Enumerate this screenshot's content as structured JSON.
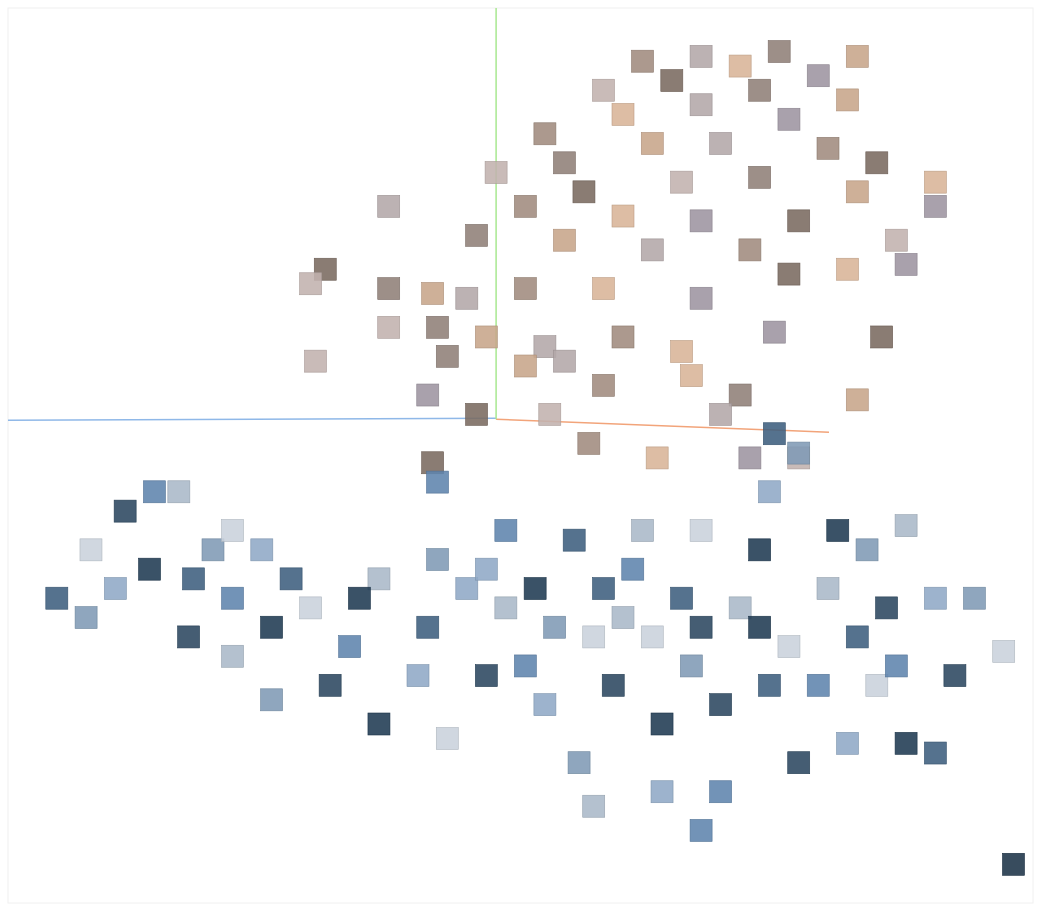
{
  "chart_data": {
    "type": "scatter",
    "marker": "square",
    "tick_labels": false,
    "grid": false,
    "xlim": [
      -10,
      11
    ],
    "ylim": [
      -10,
      8.5
    ],
    "series": [
      {
        "x": [
          5.8,
          7.4,
          4.2,
          3.0,
          5.0,
          6.6,
          3.6,
          2.2,
          5.4,
          7.2,
          4.2,
          1.0,
          2.6,
          6.0,
          7.8,
          0.0,
          1.4,
          3.2,
          4.6,
          6.8,
          9.0,
          9.0,
          1.8,
          3.8,
          5.4,
          7.4,
          -2.2,
          0.6,
          2.6,
          4.2,
          6.2,
          8.2,
          -0.4,
          1.4,
          3.2,
          5.2,
          7.2,
          8.4,
          -3.5,
          -3.8,
          -2.2,
          -1.3,
          -0.6,
          0.6,
          2.2,
          4.2,
          6.0,
          -2.2,
          -1.2,
          -0.2,
          1.0,
          2.6,
          3.8,
          5.7,
          7.9,
          -3.7,
          -1.0,
          0.6,
          1.4,
          2.2,
          4.0,
          -1.4,
          -0.4,
          1.1,
          5.0,
          7.4,
          4.6,
          1.9,
          3.3,
          5.2,
          -1.3,
          6.2
        ],
        "values": [
          7.6,
          7.5,
          7.5,
          7.4,
          7.3,
          7.1,
          7.0,
          6.8,
          6.8,
          6.6,
          6.5,
          5.9,
          6.3,
          6.2,
          5.3,
          5.1,
          5.3,
          5.7,
          5.7,
          5.6,
          4.9,
          4.4,
          4.7,
          4.9,
          5.0,
          4.7,
          4.4,
          4.4,
          4.2,
          4.1,
          4.1,
          3.7,
          3.8,
          3.7,
          3.5,
          3.5,
          3.1,
          3.2,
          3.1,
          2.8,
          2.7,
          2.6,
          2.5,
          2.7,
          2.7,
          2.5,
          3.0,
          1.9,
          1.9,
          1.7,
          1.5,
          1.7,
          1.4,
          1.8,
          1.7,
          1.2,
          1.3,
          1.1,
          1.2,
          0.7,
          0.9,
          0.5,
          0.1,
          0.1,
          0.5,
          0.4,
          0.1,
          -0.5,
          -0.8,
          -0.8,
          -0.9,
          -0.8
        ],
        "colors": [
          "#8f7f78",
          "#c7a58a",
          "#b3a7a8",
          "#a08b7e",
          "#d8b497",
          "#9d94a0",
          "#7a6a60",
          "#c2b2ae",
          "#8f7f78",
          "#c7a58a",
          "#b3a7a8",
          "#a08b7e",
          "#d8b497",
          "#9d94a0",
          "#7a6a60",
          "#c2b2ae",
          "#8f7f78",
          "#c7a58a",
          "#b3a7a8",
          "#a08b7e",
          "#d8b497",
          "#9d94a0",
          "#7a6a60",
          "#c2b2ae",
          "#8f7f78",
          "#c7a58a",
          "#b3a7a8",
          "#a08b7e",
          "#d8b497",
          "#9d94a0",
          "#7a6a60",
          "#c2b2ae",
          "#8f7f78",
          "#c7a58a",
          "#b3a7a8",
          "#a08b7e",
          "#d8b497",
          "#9d94a0",
          "#7a6a60",
          "#c2b2ae",
          "#8f7f78",
          "#c7a58a",
          "#b3a7a8",
          "#a08b7e",
          "#d8b497",
          "#9d94a0",
          "#7a6a60",
          "#c2b2ae",
          "#8f7f78",
          "#c7a58a",
          "#b3a7a8",
          "#a08b7e",
          "#d8b497",
          "#9d94a0",
          "#7a6a60",
          "#c2b2ae",
          "#8f7f78",
          "#c7a58a",
          "#b3a7a8",
          "#a08b7e",
          "#d8b497",
          "#9d94a0",
          "#7a6a60",
          "#c2b2ae",
          "#8f7f78",
          "#c7a58a",
          "#b3a7a8",
          "#a08b7e",
          "#d8b497",
          "#9d94a0",
          "#7a6a60",
          "#c2b2ae"
        ]
      },
      {
        "x": [
          -9.0,
          -8.4,
          -8.3,
          -7.6,
          -7.0,
          -6.5,
          -7.1,
          -7.8,
          -6.2,
          -5.8,
          -5.4,
          -6.3,
          -5.4,
          -5.4,
          -4.6,
          -4.8,
          -4.2,
          -4.6,
          -3.8,
          -3.4,
          -3.0,
          -2.4,
          -2.4,
          -1.6,
          -1.4,
          -1.2,
          -1.0,
          -0.2,
          0.2,
          0.2,
          0.8,
          1.0,
          1.6,
          1.7,
          2.0,
          2.4,
          2.8,
          3.0,
          3.4,
          3.4,
          3.8,
          4.0,
          4.2,
          4.6,
          4.6,
          5.0,
          5.4,
          5.6,
          5.7,
          6.2,
          6.0,
          6.2,
          6.6,
          6.8,
          7.0,
          7.2,
          7.4,
          7.6,
          7.8,
          8.0,
          8.2,
          8.4,
          8.4,
          9.0,
          9.0,
          9.8,
          10.4,
          9.4,
          4.2,
          2.0,
          -2.8,
          -0.6,
          2.2,
          1.2,
          3.2,
          4.2,
          0.6,
          2.6,
          5.4,
          -0.2,
          5.6,
          -1.2,
          10.6
        ],
        "values": [
          -3.7,
          -4.1,
          -2.7,
          -1.9,
          -1.5,
          -1.5,
          -3.1,
          -3.5,
          -3.3,
          -2.7,
          -2.3,
          -4.5,
          -3.7,
          -4.9,
          -4.3,
          -2.7,
          -3.3,
          -5.8,
          -3.9,
          -5.5,
          -4.7,
          -3.3,
          -6.3,
          -5.3,
          -4.3,
          -2.9,
          -6.6,
          -5.3,
          -2.3,
          -3.9,
          -3.5,
          -5.9,
          -2.5,
          -7.1,
          -4.5,
          -5.5,
          -3.1,
          -2.3,
          -6.3,
          -7.7,
          -3.7,
          -5.1,
          -2.3,
          -5.9,
          -7.7,
          -3.9,
          -2.7,
          -1.5,
          -0.3,
          -0.7,
          -4.7,
          -7.1,
          -5.5,
          -3.5,
          -2.3,
          -6.7,
          -4.5,
          -2.7,
          -5.5,
          -3.9,
          -5.1,
          -2.2,
          -6.7,
          -3.7,
          -6.9,
          -3.7,
          -4.8,
          -5.3,
          -8.5,
          -8.0,
          -3.7,
          -3.5,
          -3.5,
          -4.3,
          -4.5,
          -4.3,
          -5.1,
          -4.1,
          -4.3,
          -3.1,
          -5.5,
          -1.3,
          -9.2
        ],
        "colors": [
          "#3d5f7e",
          "#7f9ab5",
          "#c9d2dc",
          "#2b4760",
          "#5e84ad",
          "#aab8c8",
          "#1f3a52",
          "#8fa9c6",
          "#3d5f7e",
          "#7f9ab5",
          "#c9d2dc",
          "#2b4760",
          "#5e84ad",
          "#aab8c8",
          "#1f3a52",
          "#8fa9c6",
          "#3d5f7e",
          "#7f9ab5",
          "#c9d2dc",
          "#2b4760",
          "#5e84ad",
          "#aab8c8",
          "#1f3a52",
          "#8fa9c6",
          "#3d5f7e",
          "#7f9ab5",
          "#c9d2dc",
          "#2b4760",
          "#5e84ad",
          "#aab8c8",
          "#1f3a52",
          "#8fa9c6",
          "#3d5f7e",
          "#7f9ab5",
          "#c9d2dc",
          "#2b4760",
          "#5e84ad",
          "#aab8c8",
          "#1f3a52",
          "#8fa9c6",
          "#3d5f7e",
          "#7f9ab5",
          "#c9d2dc",
          "#2b4760",
          "#5e84ad",
          "#aab8c8",
          "#1f3a52",
          "#8fa9c6",
          "#3d5f7e",
          "#7f9ab5",
          "#c9d2dc",
          "#2b4760",
          "#5e84ad",
          "#aab8c8",
          "#1f3a52",
          "#8fa9c6",
          "#3d5f7e",
          "#7f9ab5",
          "#c9d2dc",
          "#2b4760",
          "#5e84ad",
          "#aab8c8",
          "#1f3a52",
          "#8fa9c6",
          "#3d5f7e",
          "#7f9ab5",
          "#c9d2dc",
          "#2b4760",
          "#5e84ad",
          "#aab8c8",
          "#1f3a52",
          "#8fa9c6",
          "#3d5f7e",
          "#7f9ab5",
          "#c9d2dc",
          "#2b4760",
          "#5e84ad",
          "#aab8c8",
          "#1f3a52",
          "#8fa9c6",
          "#3d5f7e",
          "#5e84ad",
          "#1c3348"
        ]
      }
    ]
  }
}
